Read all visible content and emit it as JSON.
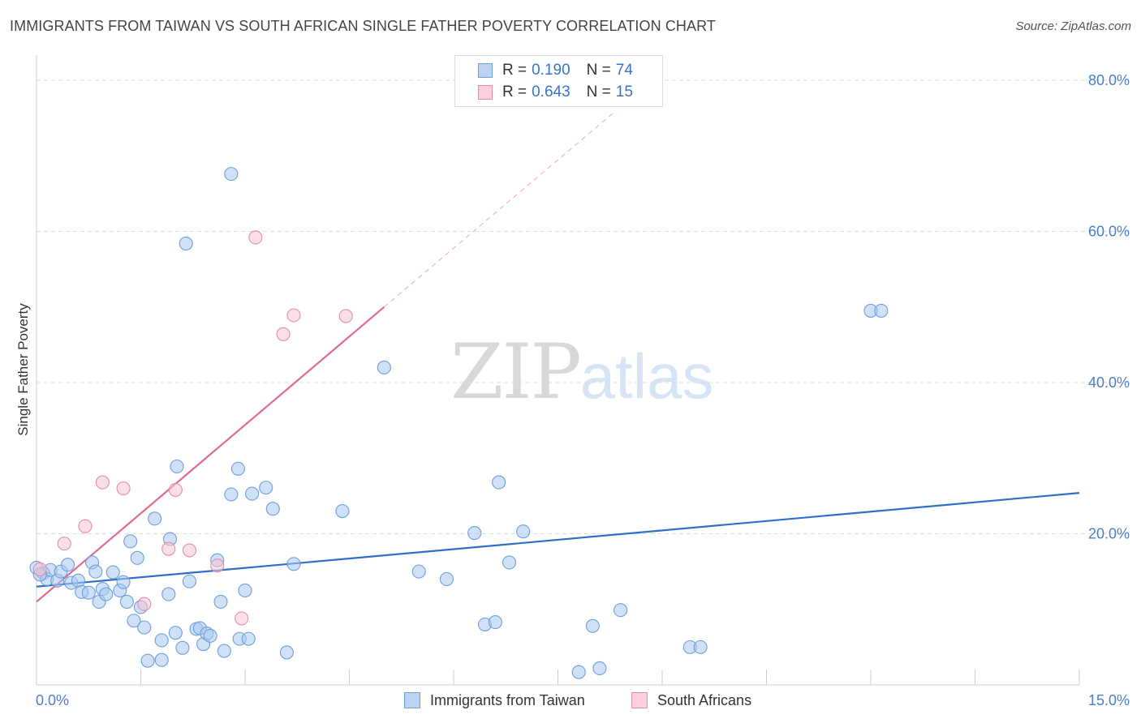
{
  "title": "IMMIGRANTS FROM TAIWAN VS SOUTH AFRICAN SINGLE FATHER POVERTY CORRELATION CHART",
  "source": "Source: ZipAtlas.com",
  "watermark": {
    "zip": "ZIP",
    "atlas": "atlas"
  },
  "legend": {
    "r_label": "R =",
    "n_label": "N =",
    "rows": [
      {
        "r": "0.190",
        "n": "74"
      },
      {
        "r": "0.643",
        "n": "15"
      }
    ]
  },
  "colors": {
    "taiwan_fill": "#a9c8f0",
    "taiwan_stroke": "#6e9fd8",
    "taiwan_line": "#2f6fc8",
    "sa_fill": "#f7c5d3",
    "sa_stroke": "#e48ca8",
    "sa_line": "#e06a94",
    "grid": "#dddddd",
    "tick_label": "#4a7fc6"
  },
  "chart_data": {
    "type": "scatter",
    "title": "IMMIGRANTS FROM TAIWAN VS SOUTH AFRICAN SINGLE FATHER POVERTY CORRELATION CHART",
    "xlabel": "",
    "ylabel": "Single Father Poverty",
    "xlim": [
      0,
      15
    ],
    "ylim": [
      0,
      80
    ],
    "x_ticks": [
      "0.0%",
      "15.0%"
    ],
    "y_ticks": [
      {
        "value": 20,
        "label": "20.0%"
      },
      {
        "value": 40,
        "label": "40.0%"
      },
      {
        "value": 60,
        "label": "60.0%"
      },
      {
        "value": 80,
        "label": "80.0%"
      }
    ],
    "grid": true,
    "legend_position": "top-center",
    "series": [
      {
        "name": "Immigrants from Taiwan",
        "color": "#a9c8f0",
        "trend": {
          "x": [
            0,
            15
          ],
          "y": [
            13.0,
            25.4
          ]
        },
        "points": [
          [
            0.0,
            15.5
          ],
          [
            0.1,
            14.8
          ],
          [
            0.15,
            14.0
          ],
          [
            0.2,
            15.2
          ],
          [
            0.3,
            13.8
          ],
          [
            0.35,
            15.0
          ],
          [
            0.45,
            15.9
          ],
          [
            0.5,
            13.5
          ],
          [
            0.6,
            13.8
          ],
          [
            0.65,
            12.3
          ],
          [
            0.75,
            12.2
          ],
          [
            0.8,
            16.2
          ],
          [
            0.85,
            15.0
          ],
          [
            0.9,
            11.0
          ],
          [
            0.95,
            12.7
          ],
          [
            1.0,
            12.0
          ],
          [
            1.1,
            14.9
          ],
          [
            1.2,
            12.5
          ],
          [
            1.25,
            13.6
          ],
          [
            1.3,
            11.0
          ],
          [
            1.35,
            19.0
          ],
          [
            1.4,
            8.5
          ],
          [
            1.45,
            16.8
          ],
          [
            1.5,
            10.3
          ],
          [
            1.55,
            7.6
          ],
          [
            1.6,
            3.2
          ],
          [
            1.7,
            22.0
          ],
          [
            1.8,
            3.3
          ],
          [
            1.8,
            5.9
          ],
          [
            1.9,
            12.0
          ],
          [
            1.92,
            19.3
          ],
          [
            2.0,
            6.9
          ],
          [
            2.02,
            28.9
          ],
          [
            2.1,
            4.9
          ],
          [
            2.15,
            58.4
          ],
          [
            2.2,
            13.7
          ],
          [
            2.3,
            7.4
          ],
          [
            2.35,
            7.5
          ],
          [
            2.4,
            5.4
          ],
          [
            2.45,
            6.8
          ],
          [
            2.5,
            6.5
          ],
          [
            2.6,
            16.5
          ],
          [
            2.65,
            11.0
          ],
          [
            2.7,
            4.5
          ],
          [
            2.8,
            25.2
          ],
          [
            2.8,
            67.6
          ],
          [
            2.9,
            28.6
          ],
          [
            2.92,
            6.1
          ],
          [
            3.0,
            12.5
          ],
          [
            3.05,
            6.1
          ],
          [
            3.1,
            25.3
          ],
          [
            3.3,
            26.1
          ],
          [
            3.4,
            23.3
          ],
          [
            3.6,
            4.3
          ],
          [
            3.7,
            16.0
          ],
          [
            4.4,
            23.0
          ],
          [
            5.0,
            42.0
          ],
          [
            5.5,
            15.0
          ],
          [
            5.9,
            14.0
          ],
          [
            6.3,
            20.1
          ],
          [
            6.45,
            8.0
          ],
          [
            6.6,
            8.3
          ],
          [
            6.65,
            26.8
          ],
          [
            6.8,
            16.2
          ],
          [
            7.0,
            20.3
          ],
          [
            7.8,
            1.7
          ],
          [
            8.0,
            7.8
          ],
          [
            8.1,
            2.2
          ],
          [
            8.4,
            9.9
          ],
          [
            9.4,
            5.0
          ],
          [
            9.55,
            5.0
          ],
          [
            12.0,
            49.5
          ],
          [
            12.15,
            49.5
          ],
          [
            0.05,
            14.6
          ]
        ]
      },
      {
        "name": "South Africans",
        "color": "#f7c5d3",
        "trend": {
          "x": [
            0,
            5
          ],
          "y": [
            11.0,
            50.0
          ]
        },
        "trend_extension": {
          "x": [
            5,
            8.3
          ],
          "y": [
            50.0,
            75.7
          ]
        },
        "points": [
          [
            0.05,
            15.3
          ],
          [
            0.4,
            18.7
          ],
          [
            0.7,
            21.0
          ],
          [
            0.95,
            26.8
          ],
          [
            1.25,
            26.0
          ],
          [
            1.55,
            10.7
          ],
          [
            1.9,
            18.0
          ],
          [
            2.0,
            25.8
          ],
          [
            2.2,
            17.8
          ],
          [
            2.6,
            15.8
          ],
          [
            2.95,
            8.8
          ],
          [
            3.15,
            59.2
          ],
          [
            3.55,
            46.4
          ],
          [
            3.7,
            48.9
          ],
          [
            4.45,
            48.8
          ]
        ]
      }
    ]
  }
}
